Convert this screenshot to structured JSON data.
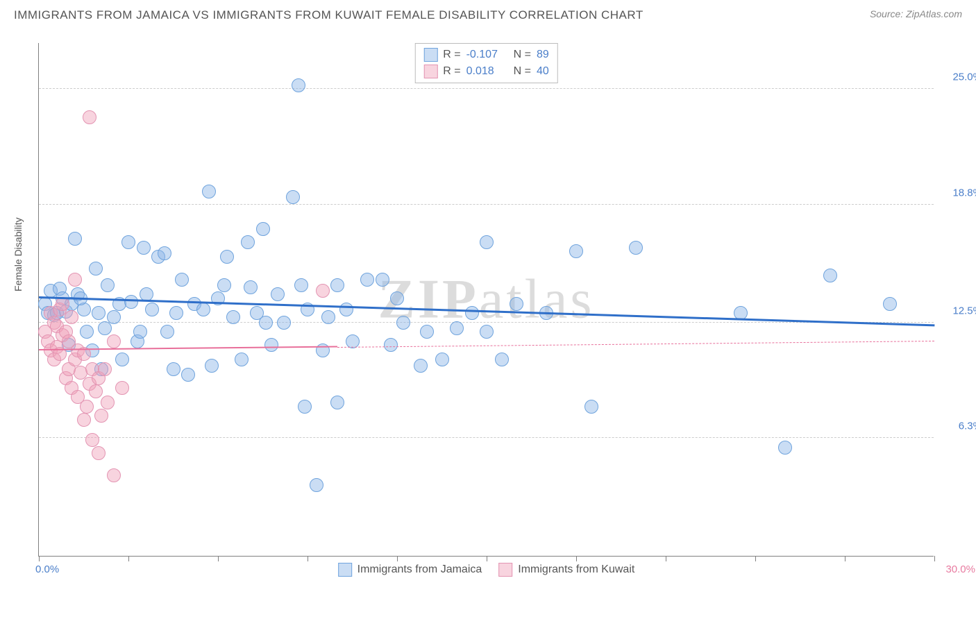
{
  "title": "IMMIGRANTS FROM JAMAICA VS IMMIGRANTS FROM KUWAIT FEMALE DISABILITY CORRELATION CHART",
  "source": "Source: ZipAtlas.com",
  "ylabel": "Female Disability",
  "watermark_bold": "ZIP",
  "watermark_light": "atlas",
  "chart": {
    "type": "scatter",
    "xlim": [
      0.0,
      30.0
    ],
    "ylim": [
      0.0,
      27.5
    ],
    "xmin_label": "0.0%",
    "xmax_label": "30.0%",
    "xmin_color": "#4a7ec9",
    "xmax_color": "#e87ba0",
    "xticks_pct": [
      0,
      10,
      20,
      30,
      40,
      50,
      60,
      70,
      80,
      90,
      100
    ],
    "yticks": [
      {
        "value": 6.3,
        "label": "6.3%",
        "color": "#4a7ec9"
      },
      {
        "value": 12.5,
        "label": "12.5%",
        "color": "#4a7ec9"
      },
      {
        "value": 18.8,
        "label": "18.8%",
        "color": "#4a7ec9"
      },
      {
        "value": 25.0,
        "label": "25.0%",
        "color": "#4a7ec9"
      }
    ],
    "grid_color": "#cccccc",
    "background_color": "#ffffff",
    "point_radius": 10,
    "series": [
      {
        "name": "Immigrants from Jamaica",
        "fill": "rgba(138,180,230,0.45)",
        "stroke": "#6fa3dd",
        "trend_color": "#2f6fc9",
        "trend_width": 3,
        "trend_y_start": 13.8,
        "trend_y_end": 12.3,
        "trend_x_solid_end": 30.0,
        "R_label": "R =",
        "R": "-0.107",
        "N_label": "N =",
        "N": "89",
        "points": [
          [
            0.2,
            13.5
          ],
          [
            0.3,
            13.0
          ],
          [
            0.4,
            14.2
          ],
          [
            0.5,
            12.9
          ],
          [
            0.6,
            13.0
          ],
          [
            0.7,
            14.3
          ],
          [
            0.8,
            13.8
          ],
          [
            0.9,
            13.1
          ],
          [
            1.0,
            11.3
          ],
          [
            1.1,
            13.5
          ],
          [
            1.2,
            17.0
          ],
          [
            1.3,
            14.0
          ],
          [
            1.5,
            13.2
          ],
          [
            1.6,
            12.0
          ],
          [
            1.8,
            11.0
          ],
          [
            1.9,
            15.4
          ],
          [
            2.0,
            13.0
          ],
          [
            2.1,
            10.0
          ],
          [
            2.3,
            14.5
          ],
          [
            2.5,
            12.8
          ],
          [
            2.7,
            13.5
          ],
          [
            2.8,
            10.5
          ],
          [
            3.0,
            16.8
          ],
          [
            3.1,
            13.6
          ],
          [
            3.3,
            11.5
          ],
          [
            3.5,
            16.5
          ],
          [
            3.6,
            14.0
          ],
          [
            3.8,
            13.2
          ],
          [
            4.0,
            16.0
          ],
          [
            4.2,
            16.2
          ],
          [
            4.3,
            12.0
          ],
          [
            4.5,
            10.0
          ],
          [
            4.8,
            14.8
          ],
          [
            5.0,
            9.7
          ],
          [
            5.2,
            13.5
          ],
          [
            5.5,
            13.2
          ],
          [
            5.7,
            19.5
          ],
          [
            5.8,
            10.2
          ],
          [
            6.0,
            13.8
          ],
          [
            6.2,
            14.5
          ],
          [
            6.5,
            12.8
          ],
          [
            6.8,
            10.5
          ],
          [
            7.0,
            16.8
          ],
          [
            7.1,
            14.4
          ],
          [
            7.3,
            13.0
          ],
          [
            7.5,
            17.5
          ],
          [
            7.8,
            11.3
          ],
          [
            8.0,
            14.0
          ],
          [
            8.2,
            12.5
          ],
          [
            8.5,
            19.2
          ],
          [
            8.7,
            25.2
          ],
          [
            8.8,
            14.5
          ],
          [
            8.9,
            8.0
          ],
          [
            9.0,
            13.2
          ],
          [
            9.3,
            3.8
          ],
          [
            9.5,
            11.0
          ],
          [
            9.7,
            12.8
          ],
          [
            10.0,
            14.5
          ],
          [
            10.0,
            8.2
          ],
          [
            10.3,
            13.2
          ],
          [
            10.5,
            11.5
          ],
          [
            11.0,
            14.8
          ],
          [
            11.5,
            14.8
          ],
          [
            11.8,
            11.3
          ],
          [
            12.0,
            13.8
          ],
          [
            12.2,
            12.5
          ],
          [
            12.8,
            10.2
          ],
          [
            13.0,
            12.0
          ],
          [
            13.5,
            10.5
          ],
          [
            14.0,
            12.2
          ],
          [
            14.5,
            13.0
          ],
          [
            15.0,
            16.8
          ],
          [
            15.0,
            12.0
          ],
          [
            15.5,
            10.5
          ],
          [
            16.0,
            13.5
          ],
          [
            17.0,
            13.0
          ],
          [
            18.0,
            16.3
          ],
          [
            18.5,
            8.0
          ],
          [
            20.0,
            16.5
          ],
          [
            23.5,
            13.0
          ],
          [
            25.0,
            5.8
          ],
          [
            26.5,
            15.0
          ],
          [
            28.5,
            13.5
          ],
          [
            1.4,
            13.8
          ],
          [
            2.2,
            12.2
          ],
          [
            3.4,
            12.0
          ],
          [
            4.6,
            13.0
          ],
          [
            6.3,
            16.0
          ],
          [
            7.6,
            12.5
          ]
        ]
      },
      {
        "name": "Immigrants from Kuwait",
        "fill": "rgba(240,160,185,0.45)",
        "stroke": "#e394b2",
        "trend_color": "#e86f9a",
        "trend_width": 2,
        "trend_y_start": 11.0,
        "trend_y_end": 11.5,
        "trend_x_solid_end": 10.0,
        "R_label": "R =",
        "R": "0.018",
        "N_label": "N =",
        "N": "40",
        "points": [
          [
            0.2,
            12.0
          ],
          [
            0.3,
            11.5
          ],
          [
            0.4,
            13.0
          ],
          [
            0.4,
            11.0
          ],
          [
            0.5,
            12.5
          ],
          [
            0.5,
            10.5
          ],
          [
            0.6,
            12.3
          ],
          [
            0.6,
            11.2
          ],
          [
            0.7,
            13.2
          ],
          [
            0.7,
            10.8
          ],
          [
            0.8,
            11.8
          ],
          [
            0.8,
            13.5
          ],
          [
            0.9,
            9.5
          ],
          [
            0.9,
            12.0
          ],
          [
            1.0,
            10.0
          ],
          [
            1.0,
            11.5
          ],
          [
            1.1,
            12.8
          ],
          [
            1.1,
            9.0
          ],
          [
            1.2,
            10.5
          ],
          [
            1.2,
            14.8
          ],
          [
            1.3,
            8.5
          ],
          [
            1.3,
            11.0
          ],
          [
            1.4,
            9.8
          ],
          [
            1.5,
            7.3
          ],
          [
            1.5,
            10.8
          ],
          [
            1.6,
            8.0
          ],
          [
            1.7,
            9.2
          ],
          [
            1.7,
            23.5
          ],
          [
            1.8,
            6.2
          ],
          [
            1.8,
            10.0
          ],
          [
            1.9,
            8.8
          ],
          [
            2.0,
            5.5
          ],
          [
            2.0,
            9.5
          ],
          [
            2.1,
            7.5
          ],
          [
            2.2,
            10.0
          ],
          [
            2.3,
            8.2
          ],
          [
            2.5,
            4.3
          ],
          [
            2.5,
            11.5
          ],
          [
            2.8,
            9.0
          ],
          [
            9.5,
            14.2
          ]
        ]
      }
    ],
    "legend_top": {
      "R_color": "#4a7ec9",
      "N_color": "#4a7ec9",
      "label_color": "#555555"
    }
  }
}
